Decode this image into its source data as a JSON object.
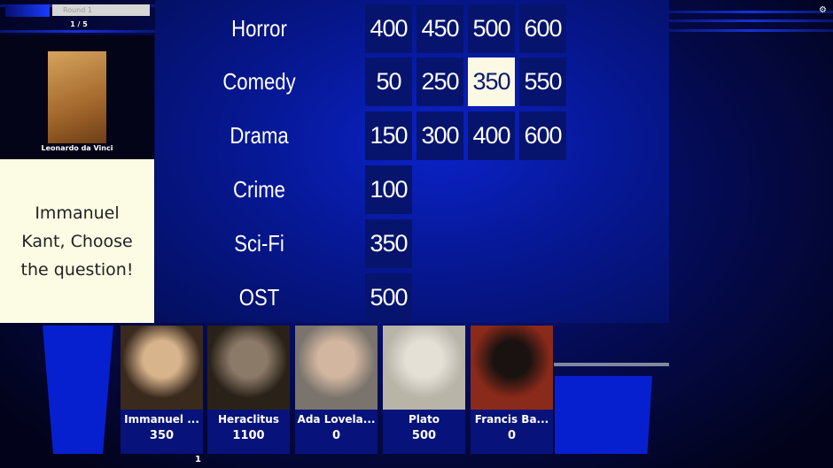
{
  "header": {
    "round_label": "Round 1",
    "round_progress": "1 / 5",
    "settings_icon": "gear-icon"
  },
  "current": {
    "name": "Leonardo da Vinci",
    "prompt": "Immanuel Kant, Choose the question!"
  },
  "board": {
    "rows": [
      {
        "category": "Horror",
        "values": [
          "400",
          "450",
          "500",
          "600"
        ]
      },
      {
        "category": "Comedy",
        "values": [
          "50",
          "250",
          "350",
          "550"
        ],
        "selected_index": 2
      },
      {
        "category": "Drama",
        "values": [
          "150",
          "300",
          "400",
          "600"
        ]
      },
      {
        "category": "Crime",
        "values": [
          "100"
        ]
      },
      {
        "category": "Sci-Fi",
        "values": [
          "350"
        ]
      },
      {
        "category": "OST",
        "values": [
          "500"
        ]
      }
    ]
  },
  "players": [
    {
      "name": "Immanuel ...",
      "score": "350",
      "colors": [
        "#3a2a1e",
        "#d8b48c"
      ]
    },
    {
      "name": "Heraclitus",
      "score": "1100",
      "colors": [
        "#2a2218",
        "#8c7a68"
      ]
    },
    {
      "name": "Ada Lovela...",
      "score": "0",
      "colors": [
        "#7a746c",
        "#d2b6a0"
      ]
    },
    {
      "name": "Plato",
      "score": "500",
      "colors": [
        "#b8b4a8",
        "#e4e0d6"
      ]
    },
    {
      "name": "Francis Ba...",
      "score": "0",
      "colors": [
        "#8a2a1a",
        "#1a1210"
      ]
    }
  ],
  "footer": {
    "turn_marker": "1"
  }
}
